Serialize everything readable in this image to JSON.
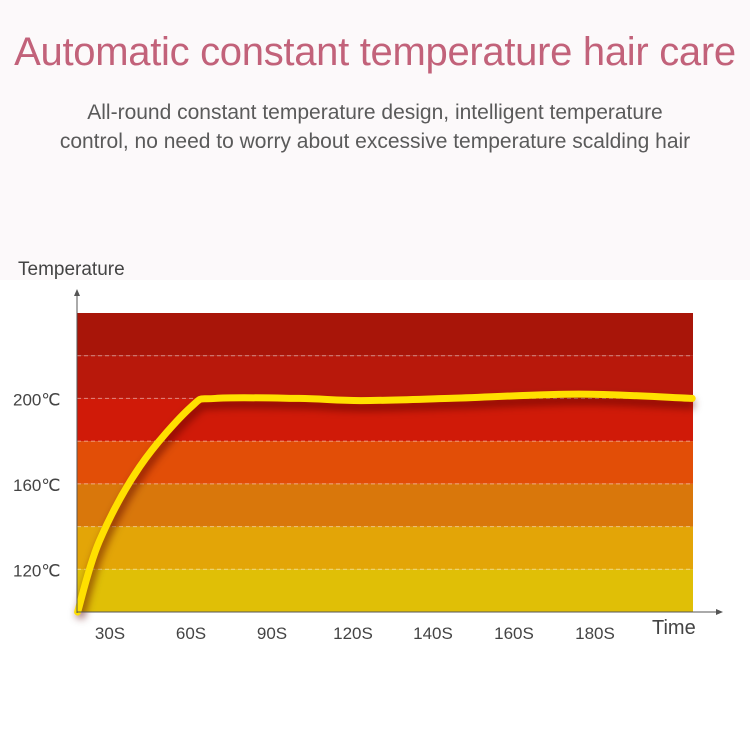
{
  "header": {
    "title": "Automatic constant temperature hair care",
    "subtitle_lines": [
      "All-round constant temperature design, intelligent temperature",
      "control, no need to worry about excessive temperature scalding hair"
    ]
  },
  "chart_data": {
    "type": "line",
    "title": "",
    "xlabel": "Time",
    "ylabel": "Temperature",
    "x_ticks": [
      "30S",
      "60S",
      "90S",
      "120S",
      "140S",
      "160S",
      "180S"
    ],
    "x_tick_values": [
      30,
      60,
      90,
      120,
      140,
      160,
      180
    ],
    "y_ticks": [
      "120℃",
      "160℃",
      "200℃"
    ],
    "y_tick_values": [
      120,
      160,
      200
    ],
    "ylim": [
      100,
      240
    ],
    "grid": true,
    "band_step": 20,
    "band_colors": [
      "#e0bf06",
      "#e3a507",
      "#d9770b",
      "#e24e07",
      "#d01a08",
      "#b8180b",
      "#a81509"
    ],
    "line_color": "#ffe000",
    "series": [
      {
        "x": [
          18,
          26,
          41,
          60,
          69,
          100,
          122,
          144,
          176,
          204
        ],
        "y": [
          100,
          133,
          168,
          196,
          200,
          200,
          199,
          200,
          202,
          200
        ]
      }
    ]
  }
}
